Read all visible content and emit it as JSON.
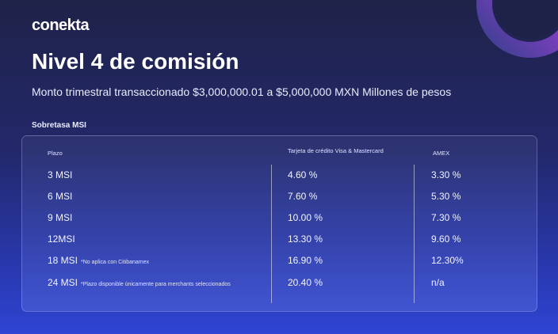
{
  "brand": {
    "name": "conekta"
  },
  "header": {
    "title": "Nivel 4 de comisión",
    "subtitle": "Monto trimestral transaccionado $3,000,000.01 a $5,000,000 MXN Millones de pesos"
  },
  "section": {
    "label": "Sobretasa MSI"
  },
  "table": {
    "columns": [
      "Plazo",
      "Tarjeta de crédito Visa & Mastercard",
      "AMEX"
    ],
    "rows": [
      {
        "plazo": "3 MSI",
        "note": "",
        "visa_mc": "4.60 %",
        "amex": "3.30 %"
      },
      {
        "plazo": "6 MSI",
        "note": "",
        "visa_mc": "7.60 %",
        "amex": "5.30 %"
      },
      {
        "plazo": "9 MSI",
        "note": "",
        "visa_mc": "10.00 %",
        "amex": "7.30 %"
      },
      {
        "plazo": "12MSI",
        "note": "",
        "visa_mc": "13.30 %",
        "amex": "9.60 %"
      },
      {
        "plazo": "18 MSI",
        "note": "*No aplica con Citibanamex",
        "visa_mc": "16.90 %",
        "amex": "12.30%"
      },
      {
        "plazo": "24 MSI",
        "note": "*Plazo disponible únicamente para merchants seleccionados",
        "visa_mc": "20.40 %",
        "amex": "n/a"
      }
    ]
  },
  "colors": {
    "accent_ring": "#c93fd6",
    "background_top": "#1f2248",
    "background_bottom": "#2e44d2"
  }
}
